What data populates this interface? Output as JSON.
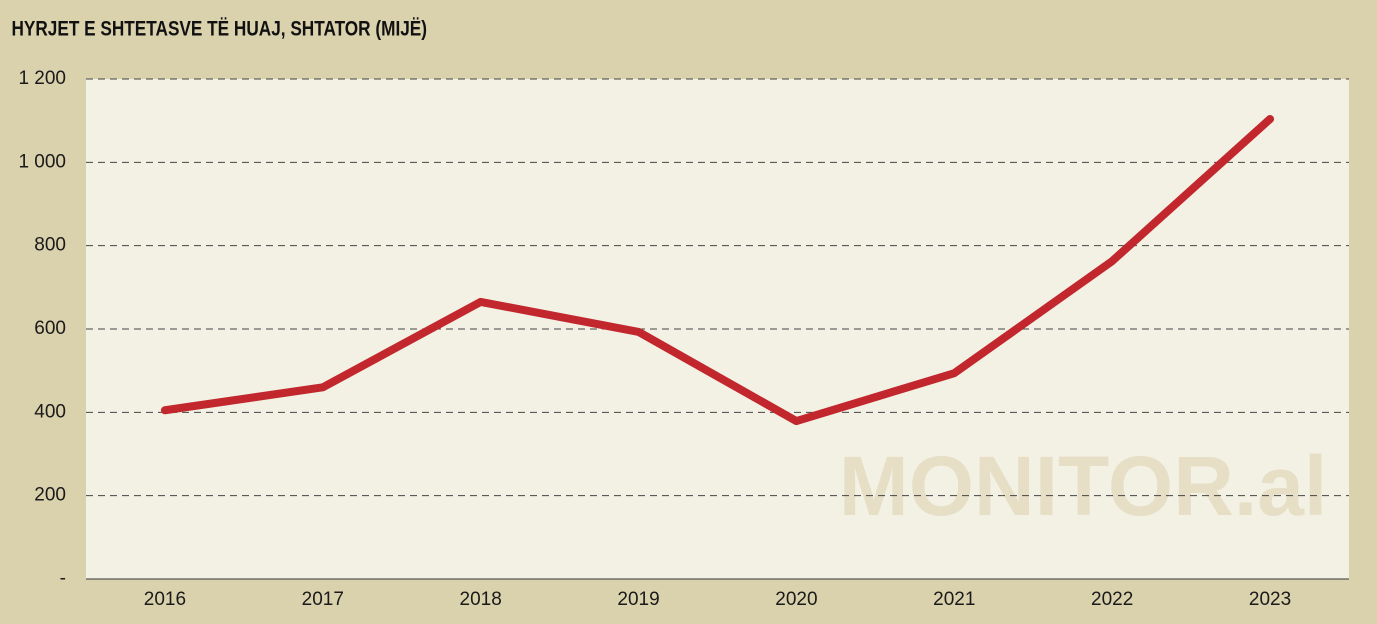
{
  "chart_data": {
    "type": "line",
    "title": "HYRJET E SHTETASVE TË HUAJ, SHTATOR (MIJË)",
    "watermark": "MONITOR.al",
    "categories": [
      "2016",
      "2017",
      "2018",
      "2019",
      "2020",
      "2021",
      "2022",
      "2023"
    ],
    "values": [
      405,
      460,
      665,
      593,
      379,
      494,
      763,
      1104
    ],
    "color": "#c1272d",
    "ylim": [
      0,
      1200
    ],
    "yticks": [
      {
        "value": 0,
        "label": "-"
      },
      200,
      400,
      600,
      800,
      {
        "value": 1000,
        "label": "1 000"
      },
      {
        "value": 1200,
        "label": "1 200"
      }
    ],
    "grid": true
  }
}
